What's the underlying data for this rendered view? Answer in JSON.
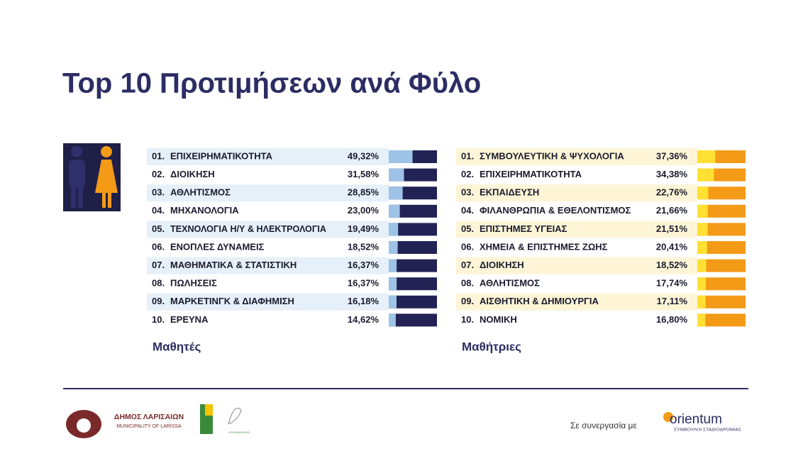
{
  "header": {
    "title": "Top 10 Προτιμήσεων ανά Φύλο"
  },
  "chart_data": [
    {
      "type": "bar",
      "orientation": "horizontal",
      "title": "Μαθητές",
      "ranks": [
        "01.",
        "02.",
        "03.",
        "04.",
        "05.",
        "06.",
        "07.",
        "08.",
        "09.",
        "10."
      ],
      "categories": [
        "ΕΠΙΧΕΙΡΗΜΑΤΙΚΟΤΗΤΑ",
        "ΔΙΟΙΚΗΣΗ",
        "ΑΘΛΗΤΙΣΜΟΣ",
        "ΜΗΧΑΝΟΛΟΓΙΑ",
        "ΤΕΧΝΟΛΟΓΙΑ Η/Υ & ΗΛΕΚΤΡΟΛΟΓΙΑ",
        "ΕΝΟΠΛΕΣ ΔΥΝΑΜΕΙΣ",
        "ΜΑΘΗΜΑΤΙΚΑ & ΣΤΑΤΙΣΤΙΚΗ",
        "ΠΩΛΗΣΕΙΣ",
        "ΜΑΡΚΕΤΙΝΓΚ & ΔΙΑΦΗΜΙΣΗ",
        "ΕΡΕΥΝΑ"
      ],
      "values": [
        49.32,
        31.58,
        28.85,
        23.0,
        19.49,
        18.52,
        16.37,
        16.37,
        16.18,
        14.62
      ],
      "value_labels": [
        "49,32%",
        "31,58%",
        "28,85%",
        "23,00%",
        "19,49%",
        "18,52%",
        "16,37%",
        "16,37%",
        "16,18%",
        "14,62%"
      ],
      "xlim": [
        0,
        100
      ],
      "color": "#9dc3e6",
      "track_color": "#222255",
      "row_color": "#e6f0f9"
    },
    {
      "type": "bar",
      "orientation": "horizontal",
      "title": "Μαθήτριες",
      "ranks": [
        "01.",
        "02.",
        "03.",
        "04.",
        "05.",
        "06.",
        "07.",
        "08.",
        "09.",
        "10."
      ],
      "categories": [
        "ΣΥΜΒΟΥΛΕΥΤΙΚΗ & ΨΥΧΟΛΟΓΙΑ",
        "ΕΠΙΧΕΙΡΗΜΑΤΙΚΟΤΗΤΑ",
        "ΕΚΠΑΙΔΕΥΣΗ",
        "ΦΙΛΑΝΘΡΩΠΙΑ & ΕΘΕΛΟΝΤΙΣΜΟΣ",
        "ΕΠΙΣΤΗΜΕΣ ΥΓΕΙΑΣ",
        "ΧΗΜΕΙΑ & ΕΠΙΣΤΗΜΕΣ ΖΩΗΣ",
        "ΔΙΟΙΚΗΣΗ",
        "ΑΘΛΗΤΙΣΜΟΣ",
        "ΑΙΣΘΗΤΙΚΗ & ΔΗΜΙΟΥΡΓΙΑ",
        "ΝΟΜΙΚΗ"
      ],
      "values": [
        37.36,
        34.38,
        22.76,
        21.66,
        21.51,
        20.41,
        18.52,
        17.74,
        17.11,
        16.8
      ],
      "value_labels": [
        "37,36%",
        "34,38%",
        "22,76%",
        "21,66%",
        "21,51%",
        "20,41%",
        "18,52%",
        "17,74%",
        "17,11%",
        "16,80%"
      ],
      "xlim": [
        0,
        100
      ],
      "color": "#ffe033",
      "track_color": "#f39a17",
      "row_color": "#fdf5d6"
    }
  ],
  "footer": {
    "municipality": "ΔΗΜΟΣ ΛΑΡΙΣΑΙΩΝ",
    "municipality_en": "MUNICIPALITY OF LARISSA",
    "directorate": "ΔΙΕΥΘΥΝΣΗ ΔΕΥΤΕΡΟΒΑΘΜΙΑΣ ΕΚΠΑΙΔΕΥΣΗΣ ΛΑΡΙΣΑΣ",
    "partner_text": "Σε συνεργασία με",
    "partner": "orientum",
    "partner_tagline": "ΣΥΜΒΟΥΛΟΙ ΣΤΑΔΙΟΔΡΟΜΙΑΣ"
  }
}
